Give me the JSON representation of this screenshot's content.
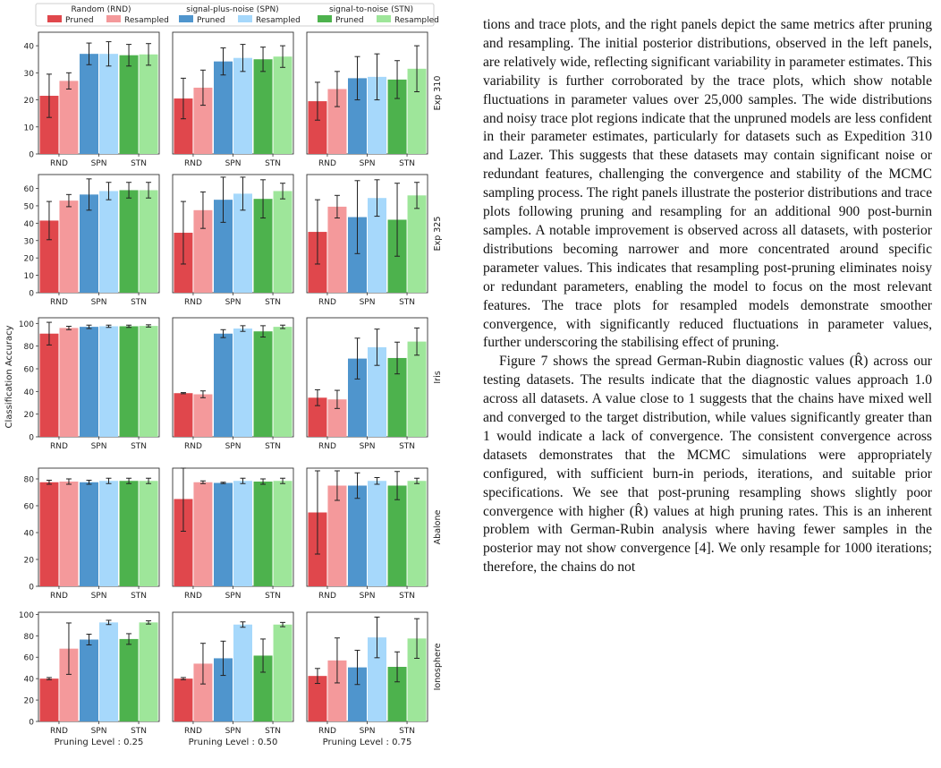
{
  "figure": {
    "legend": {
      "groups": [
        {
          "title": "Random (RND)",
          "entries": [
            {
              "label": "Pruned",
              "color": "#e0474c"
            },
            {
              "label": "Resampled",
              "color": "#f4999b"
            }
          ]
        },
        {
          "title": "signal-plus-noise (SPN)",
          "entries": [
            {
              "label": "Pruned",
              "color": "#4f95cd"
            },
            {
              "label": "Resampled",
              "color": "#a6d8fb"
            }
          ]
        },
        {
          "title": "signal-to-noise (STN)",
          "entries": [
            {
              "label": "Pruned",
              "color": "#4db24d"
            },
            {
              "label": "Resampled",
              "color": "#9ee69a"
            }
          ]
        }
      ]
    },
    "ylabel": "Classification Accuracy",
    "column_labels": [
      "Pruning Level : 0.25",
      "Pruning Level : 0.50",
      "Pruning Level : 0.75"
    ]
  },
  "chart_data": {
    "type": "bar",
    "categories": [
      "RND",
      "SPN",
      "STN"
    ],
    "series_names": [
      "Pruned",
      "Resampled"
    ],
    "rows": [
      {
        "label": "Exp 310",
        "ylim": [
          0,
          45
        ],
        "yticks": [
          "0",
          "10",
          "20",
          "30",
          "40"
        ],
        "yticks_values": [
          0,
          10,
          20,
          30,
          40
        ],
        "panels": [
          {
            "values": [
              [
                21.5,
                27.0
              ],
              [
                37.0,
                37.0
              ],
              [
                36.5,
                36.8
              ]
            ],
            "errors": [
              [
                8.0,
                3.0
              ],
              [
                4.0,
                4.5
              ],
              [
                4.0,
                4.0
              ]
            ]
          },
          {
            "values": [
              [
                20.5,
                24.5
              ],
              [
                34.2,
                35.5
              ],
              [
                35.0,
                36.0
              ]
            ],
            "errors": [
              [
                7.5,
                6.5
              ],
              [
                5.0,
                5.0
              ],
              [
                4.5,
                4.0
              ]
            ]
          },
          {
            "values": [
              [
                19.5,
                24.0
              ],
              [
                28.0,
                28.5
              ],
              [
                27.5,
                31.5
              ]
            ],
            "errors": [
              [
                7.0,
                6.5
              ],
              [
                8.0,
                8.5
              ],
              [
                7.0,
                8.5
              ]
            ]
          }
        ]
      },
      {
        "label": "Exp 325",
        "ylim": [
          0,
          68
        ],
        "yticks": [
          "0",
          "10",
          "20",
          "30",
          "40",
          "50",
          "60"
        ],
        "yticks_values": [
          0,
          10,
          20,
          30,
          40,
          50,
          60
        ],
        "panels": [
          {
            "values": [
              [
                41.5,
                53.0
              ],
              [
                56.5,
                58.5
              ],
              [
                59.0,
                59.0
              ]
            ],
            "errors": [
              [
                11.0,
                3.5
              ],
              [
                9.0,
                5.0
              ],
              [
                4.5,
                4.5
              ]
            ]
          },
          {
            "values": [
              [
                34.5,
                47.5
              ],
              [
                53.5,
                57.0
              ],
              [
                54.0,
                58.5
              ]
            ],
            "errors": [
              [
                18.0,
                10.5
              ],
              [
                13.0,
                9.5
              ],
              [
                11.0,
                4.5
              ]
            ]
          },
          {
            "values": [
              [
                35.0,
                49.5
              ],
              [
                43.5,
                54.5
              ],
              [
                42.0,
                56.0
              ]
            ],
            "errors": [
              [
                18.5,
                6.5
              ],
              [
                21.0,
                10.5
              ],
              [
                21.0,
                7.5
              ]
            ]
          }
        ]
      },
      {
        "label": "Iris",
        "ylim": [
          0,
          105
        ],
        "yticks": [
          "0",
          "20",
          "40",
          "60",
          "80",
          "100"
        ],
        "yticks_values": [
          0,
          20,
          40,
          60,
          80,
          100
        ],
        "panels": [
          {
            "values": [
              [
                91.0,
                96.0
              ],
              [
                97.0,
                97.5
              ],
              [
                97.5,
                97.8
              ]
            ],
            "errors": [
              [
                10.0,
                1.5
              ],
              [
                1.5,
                1.0
              ],
              [
                1.0,
                1.0
              ]
            ]
          },
          {
            "values": [
              [
                38.5,
                37.5
              ],
              [
                91.0,
                95.5
              ],
              [
                93.0,
                97.0
              ]
            ],
            "errors": [
              [
                0.5,
                3.0
              ],
              [
                3.5,
                2.5
              ],
              [
                5.0,
                1.5
              ]
            ]
          },
          {
            "values": [
              [
                34.5,
                33.0
              ],
              [
                69.0,
                79.0
              ],
              [
                69.5,
                84.0
              ]
            ],
            "errors": [
              [
                7.0,
                8.0
              ],
              [
                18.0,
                16.0
              ],
              [
                14.0,
                12.0
              ]
            ]
          }
        ]
      },
      {
        "label": "Abalone",
        "ylim": [
          0,
          88
        ],
        "yticks": [
          "0",
          "20",
          "40",
          "60",
          "80"
        ],
        "yticks_values": [
          0,
          20,
          40,
          60,
          80
        ],
        "panels": [
          {
            "values": [
              [
                77.5,
                78.0
              ],
              [
                77.5,
                78.5
              ],
              [
                78.5,
                78.5
              ]
            ],
            "errors": [
              [
                1.5,
                2.0
              ],
              [
                1.5,
                2.0
              ],
              [
                2.0,
                2.0
              ]
            ]
          },
          {
            "values": [
              [
                65.0,
                77.5
              ],
              [
                77.0,
                78.5
              ],
              [
                78.0,
                78.5
              ]
            ],
            "errors": [
              [
                24.0,
                1.0
              ],
              [
                0.5,
                2.0
              ],
              [
                2.0,
                2.0
              ]
            ]
          },
          {
            "values": [
              [
                55.0,
                75.0
              ],
              [
                75.0,
                78.5
              ],
              [
                75.0,
                78.5
              ]
            ],
            "errors": [
              [
                31.0,
                11.0
              ],
              [
                9.5,
                2.5
              ],
              [
                10.5,
                2.0
              ]
            ]
          }
        ]
      },
      {
        "label": "Ionosphere",
        "ylim": [
          0,
          102
        ],
        "yticks": [
          "0",
          "20",
          "40",
          "60",
          "80",
          "100"
        ],
        "yticks_values": [
          0,
          20,
          40,
          60,
          80,
          100
        ],
        "panels": [
          {
            "values": [
              [
                40.0,
                68.0
              ],
              [
                76.5,
                92.5
              ],
              [
                77.0,
                92.5
              ]
            ],
            "errors": [
              [
                1.0,
                24.0
              ],
              [
                5.0,
                2.0
              ],
              [
                5.0,
                1.5
              ]
            ]
          },
          {
            "values": [
              [
                40.0,
                54.0
              ],
              [
                59.0,
                90.5
              ],
              [
                61.5,
                90.5
              ]
            ],
            "errors": [
              [
                1.0,
                19.0
              ],
              [
                16.0,
                2.5
              ],
              [
                15.5,
                2.0
              ]
            ]
          },
          {
            "values": [
              [
                42.5,
                57.0
              ],
              [
                50.5,
                78.5
              ],
              [
                51.0,
                77.5
              ]
            ],
            "errors": [
              [
                7.0,
                21.0
              ],
              [
                16.0,
                19.0
              ],
              [
                14.0,
                18.5
              ]
            ]
          }
        ]
      }
    ]
  },
  "text": {
    "p1": "tions and trace plots, and the right panels depict the same metrics after pruning and resampling. The initial posterior distributions, observed in the left panels, are relatively wide, reflecting significant variability in parameter estimates. This variability is further corroborated by the trace plots, which show notable fluctuations in parameter values over 25,000 samples. The wide distributions and noisy trace plot regions indicate that the unpruned models are less confident in their parameter estimates, particularly for datasets such as Expedition 310 and Lazer. This suggests that these datasets may contain significant noise or redundant features, challenging the convergence and stability of the MCMC sampling process. The right panels illustrate the posterior distributions and trace plots following pruning and resampling for an additional 900 post-burnin samples. A notable improvement is observed across all datasets, with posterior distributions becoming narrower and more concentrated around specific parameter values. This indicates that resampling post-pruning eliminates noisy or redundant parameters, enabling the model to focus on the most relevant features. The trace plots for resampled models demonstrate smoother convergence, with significantly reduced fluctuations in parameter values, further underscoring the stabilising effect of pruning.",
    "p2": "Figure 7 shows the spread German-Rubin diagnostic values (R̂) across our testing datasets. The results indicate that the diagnostic values approach 1.0 across all datasets. A value close to 1 suggests that the chains have mixed well and converged to the target distribution, while values significantly greater than 1 would indicate a lack of convergence. The consistent convergence across datasets demonstrates that the MCMC simulations were appropriately configured, with sufficient burn-in periods, iterations, and suitable prior specifications. We see that post-pruning resampling shows slightly poor convergence with higher (R̂) values at high pruning rates. This is an inherent problem with German-Rubin analysis where having fewer samples in the posterior may not show convergence [4]. We only resample for 1000 iterations; therefore, the chains do not"
  }
}
